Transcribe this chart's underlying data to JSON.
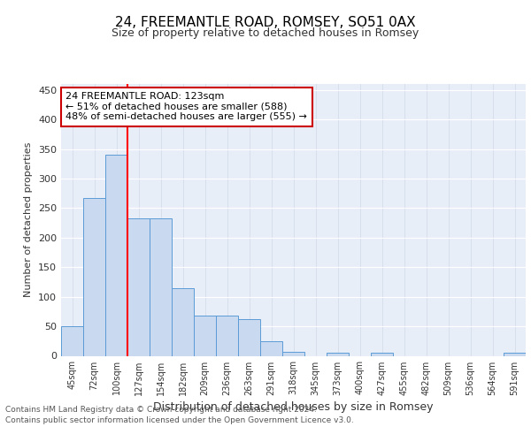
{
  "title": "24, FREEMANTLE ROAD, ROMSEY, SO51 0AX",
  "subtitle": "Size of property relative to detached houses in Romsey",
  "xlabel": "Distribution of detached houses by size in Romsey",
  "ylabel": "Number of detached properties",
  "bar_labels": [
    "45sqm",
    "72sqm",
    "100sqm",
    "127sqm",
    "154sqm",
    "182sqm",
    "209sqm",
    "236sqm",
    "263sqm",
    "291sqm",
    "318sqm",
    "345sqm",
    "373sqm",
    "400sqm",
    "427sqm",
    "455sqm",
    "482sqm",
    "509sqm",
    "536sqm",
    "564sqm",
    "591sqm"
  ],
  "bar_values": [
    50,
    267,
    340,
    232,
    232,
    114,
    68,
    68,
    62,
    25,
    7,
    0,
    5,
    0,
    5,
    0,
    0,
    0,
    0,
    0,
    5
  ],
  "bar_color": "#c9d9f0",
  "bar_edge_color": "#5b9bd5",
  "vline_x": 2.5,
  "vline_color": "red",
  "annotation_line1": "24 FREEMANTLE ROAD: 123sqm",
  "annotation_line2": "← 51% of detached houses are smaller (588)",
  "annotation_line3": "48% of semi-detached houses are larger (555) →",
  "annotation_box_color": "white",
  "annotation_box_edge_color": "#cc0000",
  "yticks": [
    0,
    50,
    100,
    150,
    200,
    250,
    300,
    350,
    400,
    450
  ],
  "ylim_max": 460,
  "footer_line1": "Contains HM Land Registry data © Crown copyright and database right 2024.",
  "footer_line2": "Contains public sector information licensed under the Open Government Licence v3.0.",
  "background_color": "#e8eef8",
  "fig_background": "#ffffff",
  "title_fontsize": 11,
  "subtitle_fontsize": 9,
  "ylabel_fontsize": 8,
  "xlabel_fontsize": 9
}
